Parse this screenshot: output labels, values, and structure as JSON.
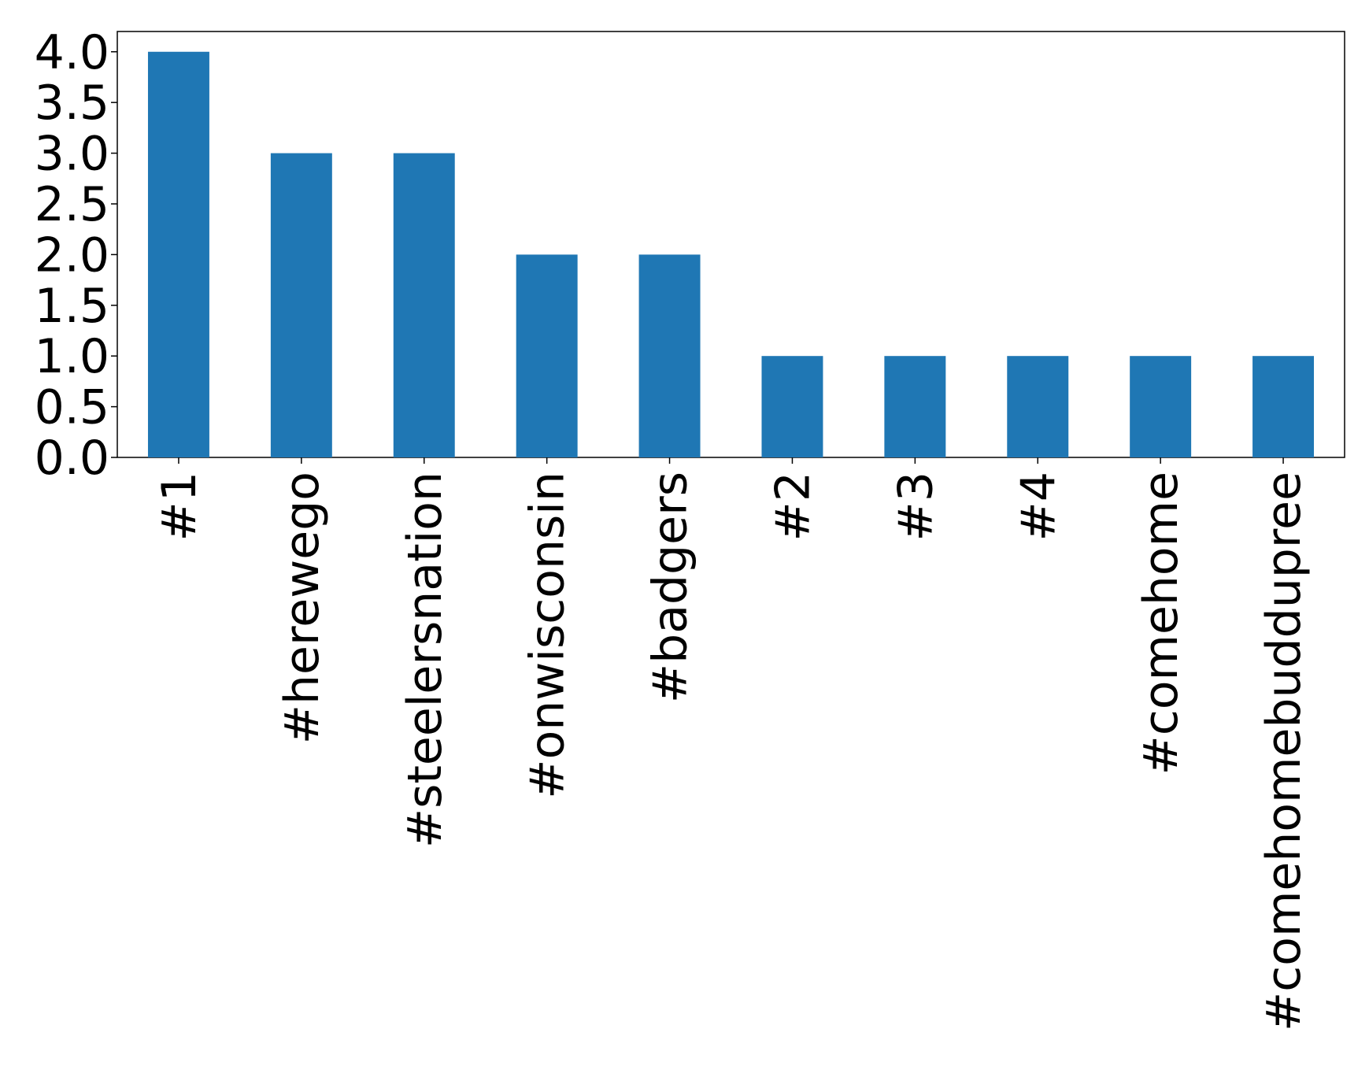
{
  "chart_data": {
    "type": "bar",
    "categories": [
      "#1",
      "#herewego",
      "#steelersnation",
      "#onwisconsin",
      "#badgers",
      "#2",
      "#3",
      "#4",
      "#comehome",
      "#comehomebuddupree"
    ],
    "values": [
      4,
      3,
      3,
      2,
      2,
      1,
      1,
      1,
      1,
      1
    ],
    "color": "#1f77b4",
    "ylim": [
      0,
      4.2
    ],
    "yticks": [
      {
        "value": 0,
        "label": "0.0"
      },
      {
        "value": 0.5,
        "label": "0.5"
      },
      {
        "value": 1,
        "label": "1.0"
      },
      {
        "value": 1.5,
        "label": "1.5"
      },
      {
        "value": 2,
        "label": "2.0"
      },
      {
        "value": 2.5,
        "label": "2.5"
      },
      {
        "value": 3,
        "label": "3.0"
      },
      {
        "value": 3.5,
        "label": "3.5"
      },
      {
        "value": 4,
        "label": "4.0"
      }
    ],
    "grid": false
  }
}
